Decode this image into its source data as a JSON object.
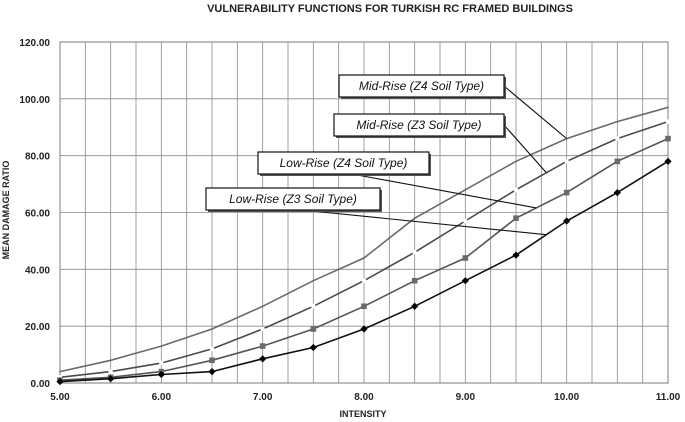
{
  "chart_data": {
    "type": "line",
    "title": "VULNERABILITY FUNCTIONS FOR TURKISH RC FRAMED BUILDINGS",
    "xlabel": "INTENSITY",
    "ylabel": "MEAN DAMAGE RATIO",
    "xlim": [
      5,
      11
    ],
    "ylim": [
      0,
      120
    ],
    "x_ticks": [
      "5.00",
      "6.00",
      "7.00",
      "8.00",
      "9.00",
      "10.00",
      "11.00"
    ],
    "y_ticks": [
      "0.00",
      "20.00",
      "40.00",
      "60.00",
      "80.00",
      "100.00",
      "120.00"
    ],
    "grid": true,
    "x": [
      5.0,
      5.5,
      6.0,
      6.5,
      7.0,
      7.5,
      8.0,
      8.5,
      9.0,
      9.5,
      10.0,
      10.5,
      11.0
    ],
    "series": [
      {
        "name": "Mid-Rise (Z4 Soil Type)",
        "color": "#6a6a6a",
        "marker": "none",
        "values": [
          4,
          8,
          13,
          19,
          27,
          36,
          44,
          58,
          68,
          78,
          86,
          92,
          97
        ]
      },
      {
        "name": "Mid-Rise (Z3 Soil Type)",
        "color": "#4a4a4a",
        "marker": "dash",
        "values": [
          2,
          4,
          7,
          12,
          19,
          27,
          36,
          46,
          57,
          68,
          78,
          86,
          92
        ]
      },
      {
        "name": "Low-Rise (Z4 Soil Type)",
        "color": "#555555",
        "marker": "square",
        "values": [
          1,
          2,
          4,
          8,
          13,
          19,
          27,
          36,
          44,
          58,
          67,
          78,
          86
        ]
      },
      {
        "name": "Low-Rise (Z3 Soil Type)",
        "color": "#111111",
        "marker": "diamond",
        "values": [
          0.5,
          1.5,
          3,
          4,
          8.5,
          12.5,
          19,
          27,
          36,
          45,
          57,
          67,
          78
        ]
      }
    ],
    "annotations": [
      {
        "text": "Mid-Rise (Z4 Soil Type)",
        "series": 0,
        "point_x": 10.0
      },
      {
        "text": "Mid-Rise (Z3 Soil Type)",
        "series": 1,
        "point_x": 9.8
      },
      {
        "text": "Low-Rise (Z4 Soil Type)",
        "series": 2,
        "point_x": 9.7
      },
      {
        "text": "Low-Rise (Z3 Soil Type)",
        "series": 3,
        "point_x": 9.8
      }
    ]
  }
}
